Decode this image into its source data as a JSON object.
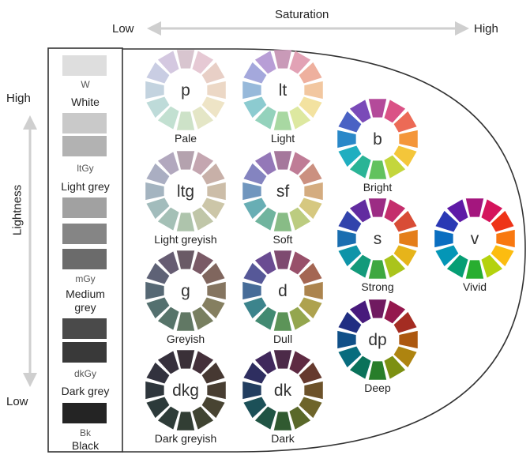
{
  "axes": {
    "saturation": {
      "title": "Saturation",
      "low": "Low",
      "high": "High"
    },
    "lightness": {
      "title": "Lightness",
      "high": "High",
      "low": "Low"
    }
  },
  "greys": [
    {
      "code": "W",
      "name": "White",
      "shades": [
        "#dedede"
      ]
    },
    {
      "code": "ltGy",
      "name": "Light grey",
      "shades": [
        "#c9c9c9",
        "#b2b2b2"
      ]
    },
    {
      "code": "mGy",
      "name": "Medium grey",
      "shades": [
        "#a1a1a1",
        "#858585",
        "#6b6b6b"
      ]
    },
    {
      "code": "dkGy",
      "name": "Dark grey",
      "shades": [
        "#4a4a4a",
        "#393939"
      ]
    },
    {
      "code": "Bk",
      "name": "Black",
      "shades": [
        "#242424"
      ]
    }
  ],
  "tones": [
    {
      "code": "p",
      "name": "Pale",
      "colors": [
        "#d8c5cf",
        "#e6c9d4",
        "#e8cfc6",
        "#ecd8c6",
        "#eee4c6",
        "#e4e6c6",
        "#cde2c8",
        "#c2e0d1",
        "#bedbd9",
        "#c3d3df",
        "#c9cde3",
        "#d4c8e0"
      ]
    },
    {
      "code": "lt",
      "name": "Light",
      "colors": [
        "#c99ab8",
        "#e2a2b5",
        "#eeb09e",
        "#f2c7a0",
        "#f3e2a0",
        "#dde8a0",
        "#a8d8a2",
        "#94d2bc",
        "#8ccbd0",
        "#97b9da",
        "#a4a8dc",
        "#b89ed6"
      ]
    },
    {
      "code": "ltg",
      "name": "Light greyish",
      "colors": [
        "#b4a2ae",
        "#c4a6b0",
        "#c8b0a8",
        "#ccbda8",
        "#ccc6a8",
        "#c0c6a8",
        "#aec4ac",
        "#a4c0b6",
        "#a2bcbc",
        "#a4b4c0",
        "#aaaec2",
        "#b2a8be"
      ]
    },
    {
      "code": "sf",
      "name": "Soft",
      "colors": [
        "#a5789c",
        "#bf7c96",
        "#cb9080",
        "#d4ac80",
        "#d6c880",
        "#bccc80",
        "#88bc86",
        "#70b49e",
        "#68aeb4",
        "#7096be",
        "#8484c0",
        "#9478b8"
      ]
    },
    {
      "code": "g",
      "name": "Greyish",
      "colors": [
        "#6a5a66",
        "#7a5a66",
        "#80665e",
        "#857560",
        "#857f60",
        "#787f60",
        "#617864",
        "#57746a",
        "#54706f",
        "#566874",
        "#5e6276",
        "#665c72"
      ]
    },
    {
      "code": "d",
      "name": "Dull",
      "colors": [
        "#7e4a70",
        "#98506a",
        "#a46652",
        "#ac844e",
        "#aea24e",
        "#94a64e",
        "#5c9458",
        "#428a72",
        "#3c848c",
        "#466c98",
        "#565898",
        "#6a4c92"
      ]
    },
    {
      "code": "dkg",
      "name": "Dark greyish",
      "colors": [
        "#3a3038",
        "#44303a",
        "#463832",
        "#483e32",
        "#484432",
        "#404432",
        "#323e34",
        "#2e3c38",
        "#2c3a3a",
        "#2e363c",
        "#32323e",
        "#36303c"
      ]
    },
    {
      "code": "dk",
      "name": "Dark",
      "colors": [
        "#4c2a48",
        "#5e2a42",
        "#663a2e",
        "#6c522a",
        "#6e642a",
        "#5a682a",
        "#305a30",
        "#205444",
        "#1c5058",
        "#223e60",
        "#2e2e60",
        "#40285c"
      ]
    },
    {
      "code": "b",
      "name": "Bright",
      "colors": [
        "#b44a9a",
        "#da5286",
        "#ec6a56",
        "#f4963a",
        "#f4c63a",
        "#c4d63c",
        "#62c25e",
        "#2ab496",
        "#20aec0",
        "#2a88c8",
        "#4a62c4",
        "#7a4ab8"
      ]
    },
    {
      "code": "s",
      "name": "Strong",
      "colors": [
        "#9c2c84",
        "#c42e6c",
        "#d84c36",
        "#e47e1a",
        "#e6b41a",
        "#aac41c",
        "#3ea840",
        "#129a7a",
        "#0e94a8",
        "#1a6eb0",
        "#3244ac",
        "#622ca0"
      ]
    },
    {
      "code": "v",
      "name": "Vivid",
      "colors": [
        "#a4167e",
        "#d4145c",
        "#ee3418",
        "#f87810",
        "#fcbc10",
        "#b4d20e",
        "#28ae30",
        "#069e74",
        "#0496b6",
        "#0a6ec0",
        "#2a38b4",
        "#5e1aa6"
      ]
    },
    {
      "code": "dp",
      "name": "Deep",
      "colors": [
        "#701a60",
        "#94184e",
        "#a42c22",
        "#ac5810",
        "#ae8410",
        "#7c9012",
        "#287e2a",
        "#0a725a",
        "#086c7e",
        "#105088",
        "#202e82",
        "#481a7c"
      ]
    }
  ]
}
